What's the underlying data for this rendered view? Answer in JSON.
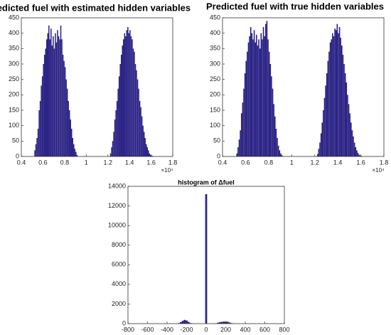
{
  "chart_data": [
    {
      "type": "histogram",
      "title": "Predicted fuel with estimated hidden variables",
      "annotation": "×10⁴",
      "color": "#2b2385",
      "bins": [
        0.52,
        0.53,
        0.54,
        0.55,
        0.56,
        0.57,
        0.58,
        0.59,
        0.6,
        0.61,
        0.62,
        0.63,
        0.64,
        0.65,
        0.66,
        0.67,
        0.68,
        0.69,
        0.7,
        0.71,
        0.72,
        0.73,
        0.74,
        0.75,
        0.76,
        0.77,
        0.78,
        0.79,
        0.8,
        0.81,
        0.82,
        0.83,
        0.84,
        0.85,
        0.86,
        0.87,
        0.88,
        0.89,
        0.9,
        0.91,
        0.92,
        0.93,
        0.94,
        0.95,
        0.96,
        0.97,
        0.98,
        0.99,
        1.0,
        1.01,
        1.02,
        1.03,
        1.04,
        1.05,
        1.06,
        1.07,
        1.08,
        1.09,
        1.1,
        1.11,
        1.12,
        1.13,
        1.14,
        1.15,
        1.16,
        1.17,
        1.18,
        1.19,
        1.2,
        1.21,
        1.22,
        1.23,
        1.24,
        1.25,
        1.26,
        1.27,
        1.28,
        1.29,
        1.3,
        1.31,
        1.32,
        1.33,
        1.34,
        1.35,
        1.36,
        1.37,
        1.38,
        1.39,
        1.4,
        1.41,
        1.42,
        1.43,
        1.44,
        1.45,
        1.46,
        1.47,
        1.48,
        1.49,
        1.5,
        1.51,
        1.52,
        1.53,
        1.54,
        1.55,
        1.56,
        1.57,
        1.58,
        1.59,
        1.6,
        1.61,
        1.62
      ],
      "values": [
        20,
        40,
        60,
        90,
        150,
        180,
        230,
        260,
        300,
        330,
        350,
        380,
        400,
        425,
        380,
        415,
        360,
        390,
        350,
        400,
        370,
        410,
        390,
        380,
        425,
        380,
        330,
        310,
        290,
        250,
        220,
        180,
        150,
        120,
        90,
        60,
        40,
        25,
        15,
        5,
        0,
        0,
        0,
        0,
        0,
        0,
        0,
        0,
        0,
        0,
        0,
        0,
        0,
        0,
        0,
        0,
        0,
        0,
        0,
        0,
        0,
        0,
        0,
        0,
        0,
        0,
        0,
        0,
        0,
        0,
        10,
        30,
        50,
        80,
        120,
        150,
        180,
        220,
        260,
        300,
        330,
        360,
        380,
        400,
        390,
        410,
        420,
        400,
        410,
        390,
        380,
        350,
        340,
        300,
        280,
        250,
        220,
        180,
        160,
        130,
        100,
        80,
        60,
        40,
        30,
        20,
        10,
        5,
        3,
        2
      ],
      "xlim": [
        0.4,
        1.8
      ],
      "xticks": [
        0.4,
        0.6,
        0.8,
        1,
        1.2,
        1.4,
        1.6,
        1.8
      ],
      "ylim": [
        0,
        450
      ],
      "yticks": [
        0,
        50,
        100,
        150,
        200,
        250,
        300,
        350,
        400,
        450
      ]
    },
    {
      "type": "histogram",
      "title": "Predicted fuel with true hidden variables",
      "annotation": "×10⁴",
      "color": "#2b2385",
      "bins": [
        0.52,
        0.53,
        0.54,
        0.55,
        0.56,
        0.57,
        0.58,
        0.59,
        0.6,
        0.61,
        0.62,
        0.63,
        0.64,
        0.65,
        0.66,
        0.67,
        0.68,
        0.69,
        0.7,
        0.71,
        0.72,
        0.73,
        0.74,
        0.75,
        0.76,
        0.77,
        0.78,
        0.79,
        0.8,
        0.81,
        0.82,
        0.83,
        0.84,
        0.85,
        0.86,
        0.87,
        0.88,
        0.89,
        0.9,
        0.91,
        0.92,
        0.93,
        0.94,
        0.95,
        0.96,
        0.97,
        0.98,
        0.99,
        1.0,
        1.01,
        1.02,
        1.03,
        1.04,
        1.05,
        1.06,
        1.07,
        1.08,
        1.09,
        1.1,
        1.11,
        1.12,
        1.13,
        1.14,
        1.15,
        1.16,
        1.17,
        1.18,
        1.19,
        1.2,
        1.21,
        1.22,
        1.23,
        1.24,
        1.25,
        1.26,
        1.27,
        1.28,
        1.29,
        1.3,
        1.31,
        1.32,
        1.33,
        1.34,
        1.35,
        1.36,
        1.37,
        1.38,
        1.39,
        1.4,
        1.41,
        1.42,
        1.43,
        1.44,
        1.45,
        1.46,
        1.47,
        1.48,
        1.49,
        1.5,
        1.51,
        1.52,
        1.53,
        1.54,
        1.55,
        1.56,
        1.57,
        1.58,
        1.59,
        1.6,
        1.61,
        1.62
      ],
      "values": [
        10,
        30,
        55,
        85,
        140,
        175,
        220,
        270,
        310,
        340,
        370,
        390,
        420,
        400,
        380,
        410,
        370,
        395,
        360,
        380,
        350,
        400,
        380,
        420,
        390,
        430,
        440,
        380,
        340,
        300,
        260,
        220,
        170,
        130,
        90,
        60,
        35,
        20,
        10,
        5,
        0,
        0,
        0,
        0,
        0,
        0,
        0,
        0,
        0,
        0,
        0,
        0,
        0,
        0,
        0,
        0,
        0,
        0,
        0,
        0,
        0,
        0,
        0,
        0,
        0,
        0,
        0,
        0,
        0,
        0,
        8,
        25,
        45,
        75,
        110,
        150,
        190,
        230,
        270,
        310,
        340,
        370,
        380,
        400,
        390,
        415,
        410,
        430,
        400,
        420,
        385,
        360,
        330,
        300,
        270,
        240,
        200,
        170,
        140,
        110,
        85,
        65,
        45,
        30,
        20,
        12,
        6,
        3,
        2,
        1
      ],
      "xlim": [
        0.4,
        1.8
      ],
      "xticks": [
        0.4,
        0.6,
        0.8,
        1,
        1.2,
        1.4,
        1.6,
        1.8
      ],
      "ylim": [
        0,
        450
      ],
      "yticks": [
        0,
        50,
        100,
        150,
        200,
        250,
        300,
        350,
        400,
        450
      ]
    },
    {
      "type": "histogram",
      "title": "histogram of Δfuel",
      "color": "#2b2385",
      "bins": [
        -310,
        -290,
        -270,
        -250,
        -230,
        -210,
        -190,
        -170,
        -150,
        -130,
        -110,
        -90,
        -70,
        -50,
        -30,
        -10,
        10,
        30,
        50,
        70,
        90,
        110,
        130,
        150,
        170,
        190,
        210,
        230,
        250,
        270,
        290,
        310
      ],
      "values": [
        10,
        50,
        150,
        280,
        380,
        320,
        180,
        60,
        20,
        8,
        4,
        2,
        0,
        0,
        0,
        13200,
        0,
        0,
        0,
        5,
        30,
        90,
        150,
        180,
        200,
        210,
        190,
        120,
        50,
        15,
        5
      ],
      "xlim": [
        -800,
        800
      ],
      "xticks": [
        -800,
        -600,
        -400,
        -200,
        0,
        200,
        400,
        600,
        800
      ],
      "ylim": [
        0,
        14000
      ],
      "yticks": [
        0,
        2000,
        4000,
        6000,
        8000,
        10000,
        12000,
        14000
      ]
    }
  ]
}
